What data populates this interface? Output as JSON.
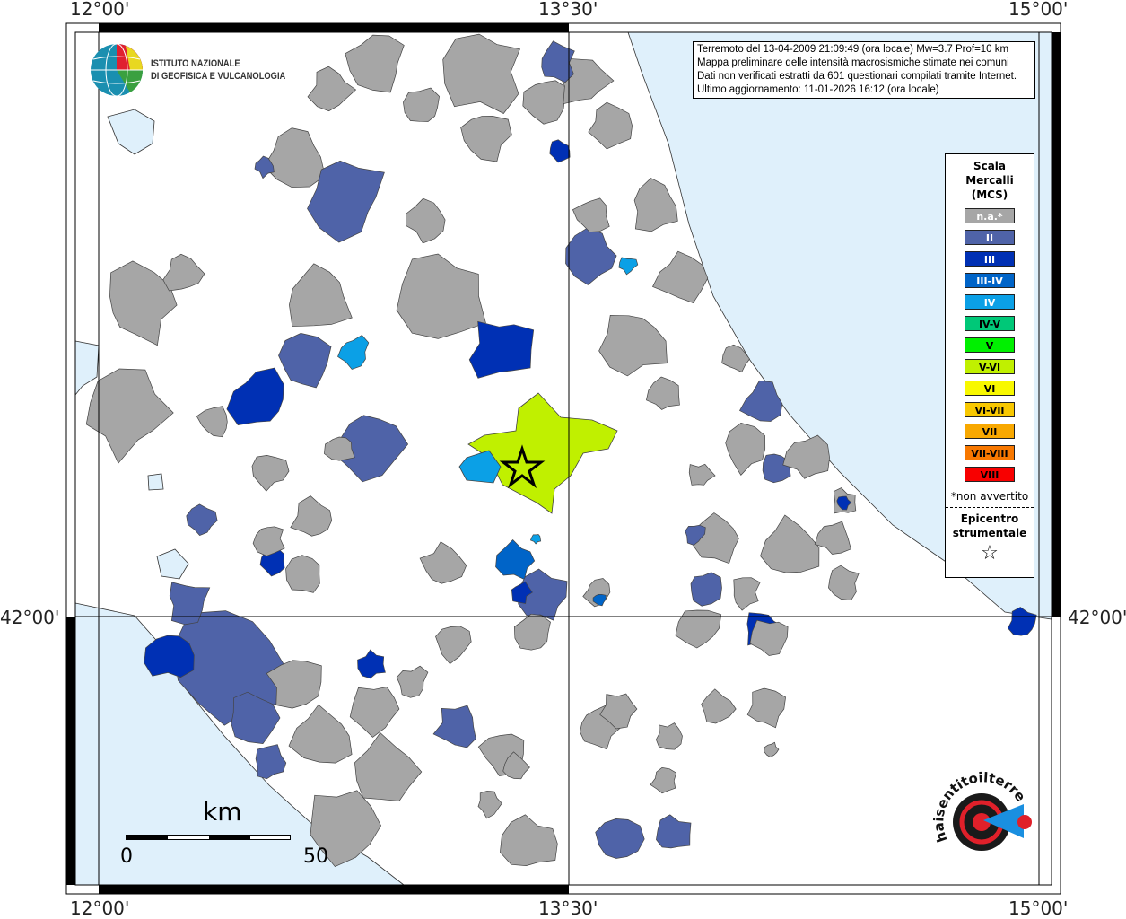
{
  "coordinates": {
    "top": [
      "12°00'",
      "13°30'",
      "15°00'"
    ],
    "bottom": [
      "12°00'",
      "13°30'",
      "15°00'"
    ],
    "left": "42°00'",
    "right": "42°00'"
  },
  "logo": {
    "line1": "ISTITUTO NAZIONALE",
    "line2": "DI GEOFISICA E VULCANOLOGIA"
  },
  "info": {
    "line1": "Terremoto del 13-04-2009 21:09:49 (ora locale) Mw=3.7 Prof=10 km",
    "line2": "Mappa preliminare delle intensità macrosismiche stimate nei comuni",
    "line3": "Dati non verificati estratti da 601 questionari compilati tramite Internet.",
    "line4": "Ultimo aggiornamento: 11-01-2026 16:12 (ora locale)"
  },
  "legend": {
    "title1": "Scala",
    "title2": "Mercalli",
    "title3": "(MCS)",
    "items": [
      {
        "label": "n.a.*",
        "color": "#a6a6a6",
        "text": "#ffffff"
      },
      {
        "label": "II",
        "color": "#4f63a8",
        "text": "#ffffff"
      },
      {
        "label": "III",
        "color": "#0030b4",
        "text": "#ffffff"
      },
      {
        "label": "III-IV",
        "color": "#0064c8",
        "text": "#ffffff"
      },
      {
        "label": "IV",
        "color": "#0ba0e6",
        "text": "#ffffff"
      },
      {
        "label": "IV-V",
        "color": "#00c878",
        "text": "#000000"
      },
      {
        "label": "V",
        "color": "#00f000",
        "text": "#000000"
      },
      {
        "label": "V-VI",
        "color": "#c0f000",
        "text": "#000000"
      },
      {
        "label": "VI",
        "color": "#f8f800",
        "text": "#000000"
      },
      {
        "label": "VI-VII",
        "color": "#f8c800",
        "text": "#000000"
      },
      {
        "label": "VII",
        "color": "#f8a800",
        "text": "#000000"
      },
      {
        "label": "VII-VIII",
        "color": "#f87800",
        "text": "#000000"
      },
      {
        "label": "VIII",
        "color": "#f80000",
        "text": "#000000"
      }
    ],
    "note": "*non avvertito",
    "epi1": "Epicentro",
    "epi2": "strumentale",
    "star": "☆"
  },
  "scale": {
    "unit": "km",
    "min": "0",
    "max": "50"
  },
  "hs_logo": "www.haisentitoilterremoto.it"
}
